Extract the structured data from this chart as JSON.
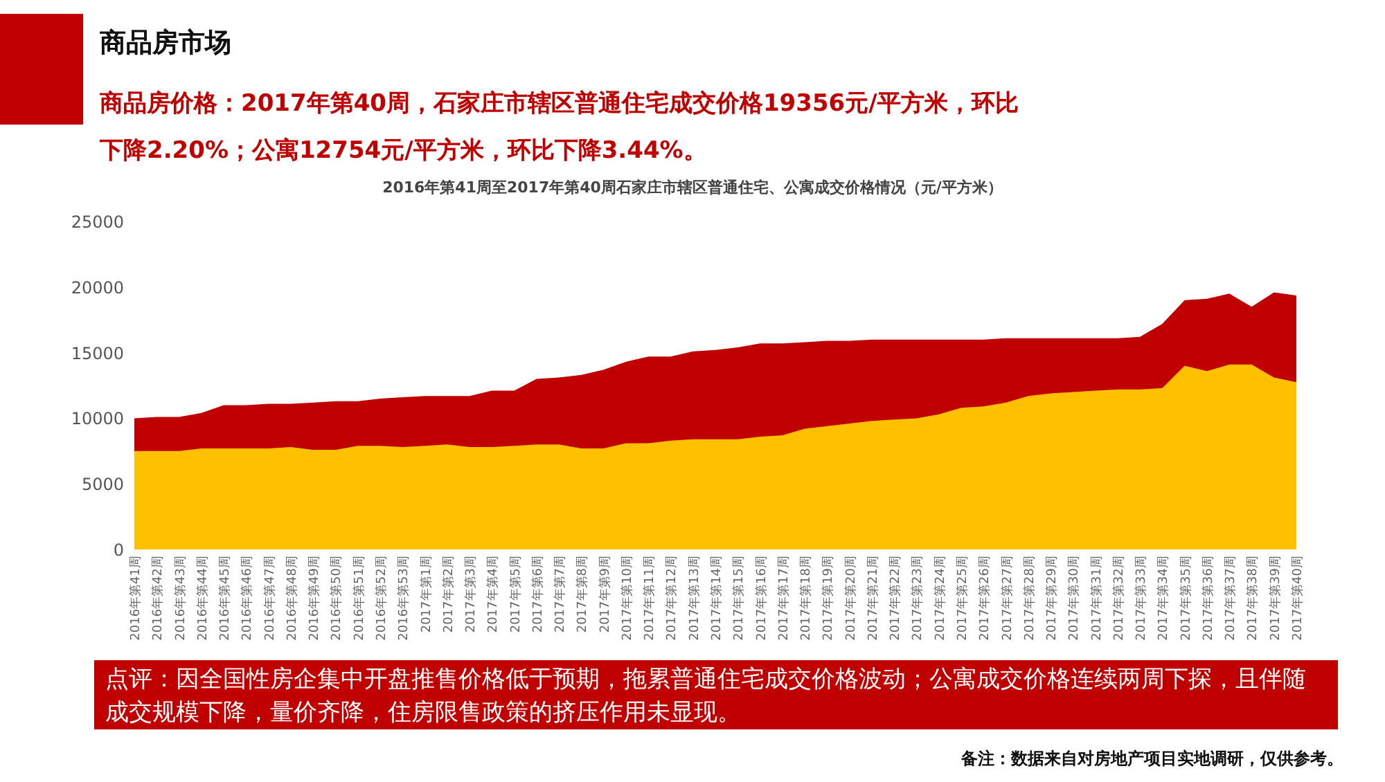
{
  "chart_data": {
    "type": "area",
    "title": "商品房市场",
    "subtitle": "商品房价格：2017年第40周，石家庄市辖区普通住宅成交价格19356元/平方米，环比下降2.20%；公寓12754元/平方米，环比下降3.44%。",
    "annotations": [
      "2016年第41周至2017年第40周石家庄市辖区普通住宅、公寓成交价格情况（元/平方米）",
      "点评：因全国性房企集中开盘推售价格低于预期，拖累普通住宅成交价格波动；公寓成交价格连续两周下探，且伴随成交规模下降，量价齐降，住房限售政策的挤压作用未显现。",
      "备注：数据来自对房地产项目实地调研，仅供参考。"
    ],
    "categories": [
      "2016年第41周",
      "2016年第42周",
      "2016年第43周",
      "2016年第44周",
      "2016年第45周",
      "2016年第46周",
      "2016年第47周",
      "2016年第48周",
      "2016年第49周",
      "2016年第50周",
      "2016年第51周",
      "2016年第52周",
      "2016年第53周",
      "2017年第1周",
      "2017年第2周",
      "2017年第3周",
      "2017年第4周",
      "2017年第5周",
      "2017年第6周",
      "2017年第7周",
      "2017年第8周",
      "2017年第9周",
      "2017年第10周",
      "2017年第11周",
      "2017年第12周",
      "2017年第13周",
      "2017年第14周",
      "2017年第15周",
      "2017年第16周",
      "2017年第17周",
      "2017年第18周",
      "2017年第19周",
      "2017年第20周",
      "2017年第21周",
      "2017年第22周",
      "2017年第23周",
      "2017年第24周",
      "2017年第25周",
      "2017年第26周",
      "2017年第27周",
      "2017年第28周",
      "2017年第29周",
      "2017年第30周",
      "2017年第31周",
      "2017年第32周",
      "2017年第33周",
      "2017年第34周",
      "2017年第35周",
      "2017年第36周",
      "2017年第37周",
      "2017年第38周",
      "2017年第39周",
      "2017年第40周"
    ],
    "series": [
      {
        "color": "#c00000",
        "values": [
          10000,
          10100,
          10100,
          10400,
          11000,
          11000,
          11100,
          11100,
          11200,
          11300,
          11300,
          11500,
          11600,
          11700,
          11700,
          11700,
          12100,
          12100,
          13000,
          13100,
          13300,
          13700,
          14300,
          14700,
          14700,
          15100,
          15200,
          15400,
          15700,
          15700,
          15800,
          15900,
          15900,
          16000,
          16000,
          16000,
          16000,
          16000,
          16000,
          16100,
          16100,
          16100,
          16100,
          16100,
          16100,
          16200,
          17200,
          19000,
          19100,
          19500,
          18500,
          19600,
          19356
        ]
      },
      {
        "color": "#ffc000",
        "values": [
          7500,
          7500,
          7500,
          7700,
          7700,
          7700,
          7700,
          7800,
          7600,
          7600,
          7900,
          7900,
          7800,
          7900,
          8000,
          7800,
          7800,
          7900,
          8000,
          8000,
          7700,
          7700,
          8100,
          8100,
          8300,
          8400,
          8400,
          8400,
          8600,
          8700,
          9200,
          9400,
          9600,
          9800,
          9900,
          10000,
          10300,
          10800,
          10900,
          11200,
          11700,
          11900,
          12000,
          12100,
          12200,
          12200,
          12300,
          14000,
          13600,
          14100,
          14100,
          13100,
          12754
        ]
      }
    ],
    "ylim": [
      0,
      25000
    ],
    "yticks": [
      0,
      5000,
      10000,
      15000,
      20000,
      25000
    ],
    "grid": false
  }
}
